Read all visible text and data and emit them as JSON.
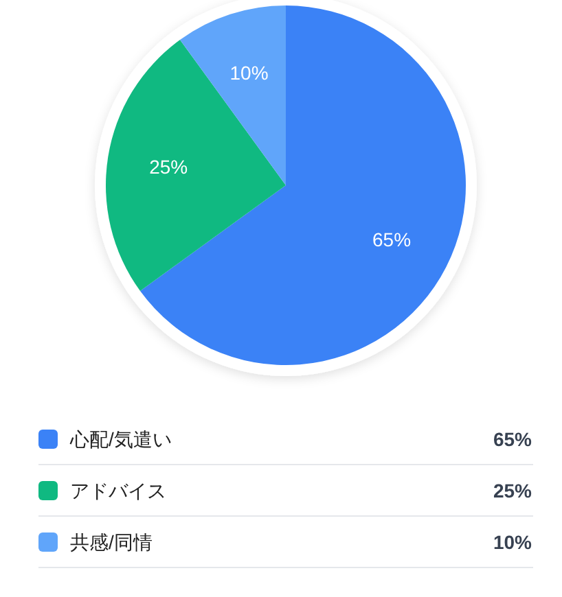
{
  "chart_data": {
    "type": "pie",
    "categories": [
      "心配/気遣い",
      "アドバイス",
      "共感/同情"
    ],
    "values": [
      65,
      25,
      10
    ],
    "colors": [
      "#3b82f6",
      "#10b981",
      "#60a5fa"
    ],
    "value_labels": [
      "65%",
      "25%",
      "10%"
    ],
    "legend": "bottom"
  }
}
